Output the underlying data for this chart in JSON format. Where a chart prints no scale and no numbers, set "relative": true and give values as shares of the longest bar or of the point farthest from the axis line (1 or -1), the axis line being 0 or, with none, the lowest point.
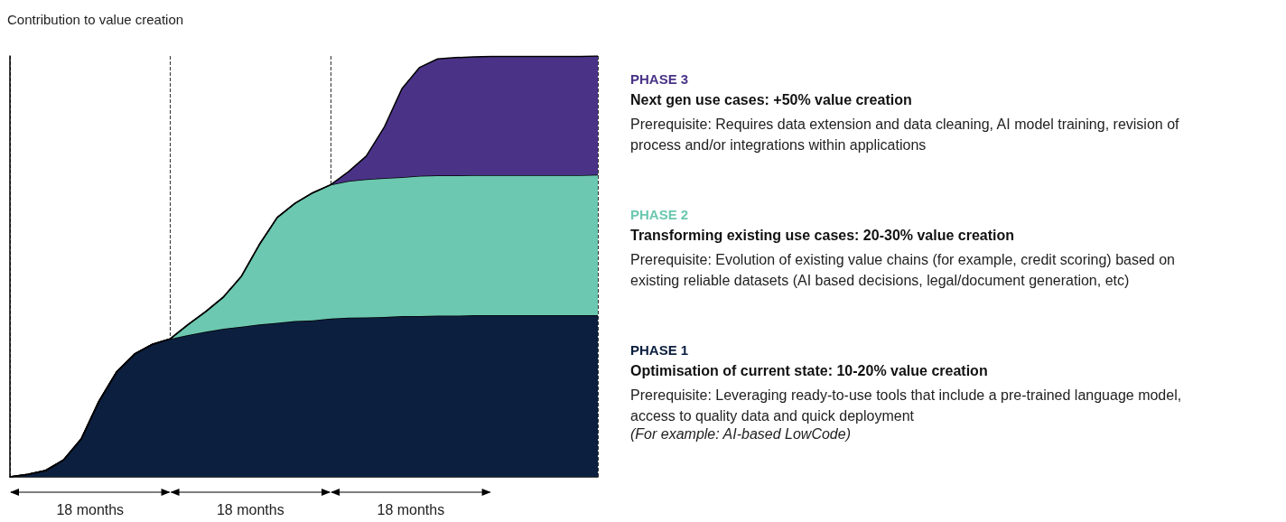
{
  "chart_data": {
    "type": "area",
    "stacked": true,
    "relative": true,
    "ylabel": "Contribution to value creation",
    "grid": "x",
    "categories": [
      null,
      null,
      null,
      null,
      null,
      null,
      null,
      null,
      null,
      null,
      null,
      null,
      null,
      null,
      null,
      null,
      null,
      null,
      null,
      null,
      null,
      null,
      null,
      null,
      null,
      null,
      null,
      null,
      null,
      null,
      null,
      null,
      null,
      null
    ],
    "series": [
      {
        "name": "PHASE 1",
        "color": "#0c1f3f",
        "values": [
          0,
          0.006,
          0.015,
          0.04,
          0.09,
          0.18,
          0.25,
          0.292,
          0.315,
          0.328,
          0.337,
          0.345,
          0.352,
          0.357,
          0.362,
          0.366,
          0.37,
          0.372,
          0.376,
          0.378,
          0.379,
          0.38,
          0.382,
          0.382,
          0.383,
          0.383,
          0.384,
          0.384,
          0.384,
          0.384,
          0.384,
          0.384,
          0.384,
          0.384
        ]
      },
      {
        "name": "PHASE 2",
        "color": "#6cc8b0",
        "values": [
          0,
          0,
          0,
          0,
          0,
          0,
          0,
          0,
          0,
          0,
          0.025,
          0.048,
          0.076,
          0.12,
          0.19,
          0.25,
          0.28,
          0.303,
          0.318,
          0.325,
          0.328,
          0.33,
          0.33,
          0.333,
          0.333,
          0.333,
          0.333,
          0.333,
          0.333,
          0.333,
          0.333,
          0.333,
          0.333,
          0.334
        ]
      },
      {
        "name": "PHASE 3",
        "color": "#4a3387",
        "values": [
          0,
          0,
          0,
          0,
          0,
          0,
          0,
          0,
          0,
          0,
          0,
          0,
          0,
          0,
          0,
          0,
          0,
          0,
          0,
          0.022,
          0.055,
          0.12,
          0.21,
          0.258,
          0.277,
          0.28,
          0.281,
          0.282,
          0.282,
          0.282,
          0.282,
          0.282,
          0.282,
          0.282
        ]
      }
    ],
    "annotations": [
      "18 months",
      "18 months",
      "18 months",
      "Next gen use cases: +50% value creation",
      "Prerequisite: Requires data extension and data cleaning, AI model training, revision of process and/or integrations within applications",
      "Transforming existing use cases: 20-30% value creation",
      "Prerequisite: Evolution of existing value chains (for example, credit scoring) based on existing reliable datasets (AI based decisions, legal/document generation, etc)",
      "Optimisation of current state: 10-20% value creation",
      "Prerequisite: Leveraging ready-to-use tools that include a pre-trained language model, access to quality data and quick deployment",
      "(For example: AI-based LowCode)"
    ]
  }
}
